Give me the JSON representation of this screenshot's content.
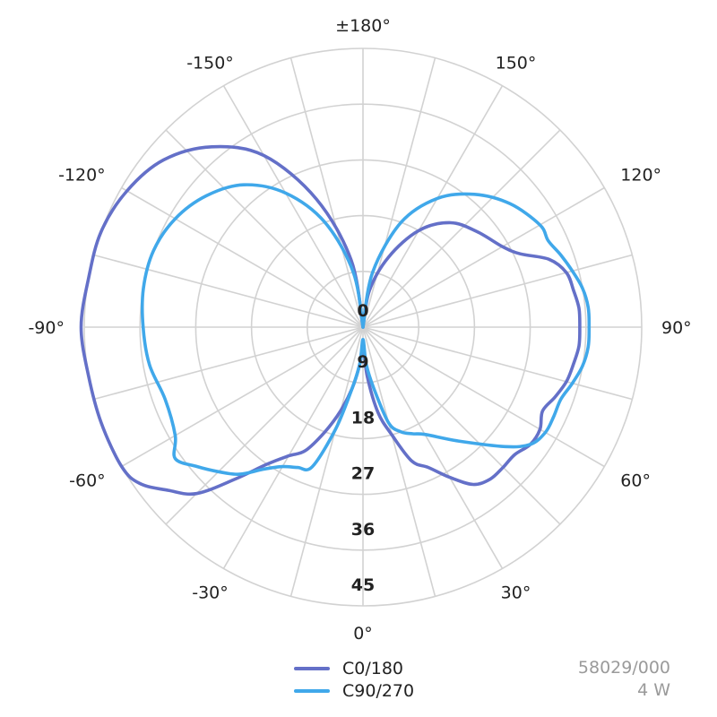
{
  "chart_data": {
    "type": "polar",
    "radial_max": 45,
    "radial_ticks": [
      "0",
      "9",
      "18",
      "27",
      "36",
      "45"
    ],
    "angle_ticks": [
      "±180°",
      "150°",
      "120°",
      "90°",
      "60°",
      "30°",
      "0°",
      "-30°",
      "-60°",
      "-90°",
      "-120°",
      "-150°"
    ],
    "grid": true,
    "legend_position": "bottom-center",
    "series": [
      {
        "name": "C0/180",
        "color": "#6470c8",
        "points": [
          [
            -180,
            0
          ],
          [
            -170,
            11
          ],
          [
            -160,
            22
          ],
          [
            -150,
            32
          ],
          [
            -140,
            38
          ],
          [
            -130,
            42
          ],
          [
            -120,
            44
          ],
          [
            -110,
            45
          ],
          [
            -100,
            45
          ],
          [
            -90,
            45.5
          ],
          [
            -80,
            45
          ],
          [
            -70,
            45
          ],
          [
            -60,
            45
          ],
          [
            -55,
            44
          ],
          [
            -50,
            41
          ],
          [
            -45,
            38
          ],
          [
            -40,
            32
          ],
          [
            -35,
            27
          ],
          [
            -30,
            24
          ],
          [
            -25,
            22
          ],
          [
            -20,
            18
          ],
          [
            -15,
            14
          ],
          [
            -10,
            10
          ],
          [
            -5,
            6
          ],
          [
            0,
            3
          ],
          [
            5,
            8
          ],
          [
            10,
            14
          ],
          [
            15,
            18
          ],
          [
            20,
            23
          ],
          [
            25,
            25
          ],
          [
            30,
            28
          ],
          [
            35,
            31
          ],
          [
            40,
            32
          ],
          [
            45,
            32
          ],
          [
            50,
            32
          ],
          [
            55,
            33
          ],
          [
            60,
            33
          ],
          [
            65,
            32
          ],
          [
            70,
            33
          ],
          [
            75,
            34
          ],
          [
            80,
            34.5
          ],
          [
            85,
            35
          ],
          [
            90,
            35
          ],
          [
            95,
            35
          ],
          [
            100,
            34.5
          ],
          [
            105,
            34
          ],
          [
            110,
            32
          ],
          [
            115,
            28
          ],
          [
            120,
            26
          ],
          [
            130,
            24
          ],
          [
            140,
            22
          ],
          [
            150,
            18
          ],
          [
            160,
            12
          ],
          [
            170,
            6
          ],
          [
            180,
            0
          ]
        ]
      },
      {
        "name": "C90/270",
        "color": "#40a8ea",
        "points": [
          [
            -180,
            0
          ],
          [
            -170,
            9
          ],
          [
            -160,
            18
          ],
          [
            -150,
            25
          ],
          [
            -140,
            30
          ],
          [
            -130,
            33
          ],
          [
            -120,
            35
          ],
          [
            -110,
            36
          ],
          [
            -100,
            36
          ],
          [
            -90,
            35.5
          ],
          [
            -80,
            35
          ],
          [
            -70,
            34
          ],
          [
            -60,
            35
          ],
          [
            -55,
            37
          ],
          [
            -50,
            35
          ],
          [
            -45,
            33
          ],
          [
            -40,
            31
          ],
          [
            -35,
            28
          ],
          [
            -30,
            26
          ],
          [
            -25,
            25
          ],
          [
            -20,
            24
          ],
          [
            -15,
            17
          ],
          [
            -10,
            10
          ],
          [
            -5,
            6
          ],
          [
            0,
            2
          ],
          [
            5,
            6
          ],
          [
            10,
            10
          ],
          [
            15,
            16
          ],
          [
            20,
            18
          ],
          [
            25,
            19
          ],
          [
            30,
            20
          ],
          [
            40,
            24
          ],
          [
            50,
            30
          ],
          [
            55,
            33
          ],
          [
            60,
            34
          ],
          [
            65,
            34
          ],
          [
            70,
            34
          ],
          [
            75,
            35
          ],
          [
            80,
            36
          ],
          [
            85,
            36.5
          ],
          [
            90,
            36.5
          ],
          [
            95,
            36.5
          ],
          [
            100,
            36
          ],
          [
            105,
            35
          ],
          [
            110,
            34
          ],
          [
            115,
            33
          ],
          [
            120,
            33
          ],
          [
            130,
            31
          ],
          [
            140,
            28
          ],
          [
            150,
            24
          ],
          [
            160,
            18
          ],
          [
            170,
            9
          ],
          [
            180,
            0
          ]
        ]
      }
    ]
  },
  "legend": {
    "items": [
      {
        "label": "C0/180",
        "color": "#6470c8"
      },
      {
        "label": "C90/270",
        "color": "#40a8ea"
      }
    ]
  },
  "info": {
    "code": "58029/000",
    "power": "4 W"
  }
}
